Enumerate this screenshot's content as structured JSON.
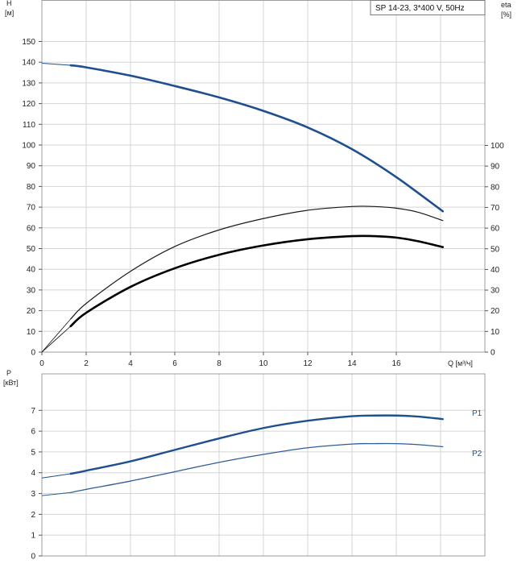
{
  "colors": {
    "head": "#1f4f8f",
    "eta_overall": "#000000",
    "eta_pump": "#1a1a1a",
    "p1": "#1f4f8f",
    "p2": "#2d5d99",
    "grid": "#d4d4d4",
    "frame": "#9c9c9c"
  },
  "legend": {
    "text": "SP 14-23, 3*400 V, 50Hz"
  },
  "chart_data": [
    {
      "type": "line",
      "title": "",
      "ylabel_line1": "H",
      "ylabel_line2": "[м]",
      "y2label_line1": "eta",
      "y2label_line2": "[%]",
      "xlabel": "Q [м³/ч]",
      "xlim": [
        0,
        20
      ],
      "ylim": [
        0,
        150
      ],
      "y2lim": [
        0,
        100
      ],
      "x_ticks": [
        0,
        2,
        4,
        6,
        8,
        10,
        12,
        14,
        16
      ],
      "y_ticks": [
        0,
        10,
        20,
        30,
        40,
        50,
        60,
        70,
        80,
        90,
        100,
        110,
        120,
        130,
        140,
        150
      ],
      "y2_ticks": [
        0,
        10,
        20,
        30,
        40,
        50,
        60,
        70,
        80,
        90,
        100
      ],
      "grid": true,
      "legend_position": "top-right",
      "series": [
        {
          "key": "head",
          "axis": "left",
          "x": [
            0,
            1.3,
            2,
            4,
            6,
            8,
            10,
            12,
            14,
            16,
            18.1
          ],
          "y": [
            139.5,
            138.5,
            137.5,
            133.5,
            128.5,
            123,
            116.5,
            108.5,
            98,
            84.5,
            68
          ]
        },
        {
          "key": "eta_pump",
          "axis": "left",
          "x": [
            0,
            1.3,
            2,
            4,
            6,
            8,
            10,
            12,
            14,
            15,
            16,
            17,
            18.1
          ],
          "y": [
            0,
            16,
            23.5,
            39,
            51,
            59,
            64.5,
            68.5,
            70.3,
            70.3,
            69.5,
            67.5,
            63.5
          ]
        },
        {
          "key": "eta_overall",
          "axis": "left",
          "x": [
            0,
            1.3,
            2,
            4,
            6,
            8,
            10,
            12,
            14,
            15,
            16,
            17,
            18.1
          ],
          "y": [
            0,
            12.5,
            19,
            31.5,
            40.5,
            47,
            51.5,
            54.5,
            56,
            56,
            55.3,
            53.5,
            50.7
          ]
        }
      ]
    },
    {
      "type": "line",
      "title": "",
      "ylabel_line1": "P",
      "ylabel_line2": "[кВт]",
      "xlim": [
        0,
        20
      ],
      "ylim": [
        0,
        8
      ],
      "y_ticks": [
        0,
        1,
        2,
        3,
        4,
        5,
        6,
        7
      ],
      "grid": true,
      "series": [
        {
          "key": "p1",
          "name": "P1",
          "x": [
            0,
            1.3,
            2,
            4,
            6,
            8,
            10,
            12,
            14,
            15,
            16,
            17,
            18.1
          ],
          "y": [
            3.75,
            3.95,
            4.1,
            4.55,
            5.1,
            5.65,
            6.15,
            6.5,
            6.72,
            6.75,
            6.75,
            6.7,
            6.58
          ]
        },
        {
          "key": "p2",
          "name": "P2",
          "x": [
            0,
            1.3,
            2,
            4,
            6,
            8,
            10,
            12,
            14,
            15,
            16,
            17,
            18.1
          ],
          "y": [
            2.9,
            3.05,
            3.2,
            3.6,
            4.05,
            4.5,
            4.88,
            5.2,
            5.38,
            5.4,
            5.4,
            5.35,
            5.25
          ]
        }
      ]
    }
  ]
}
